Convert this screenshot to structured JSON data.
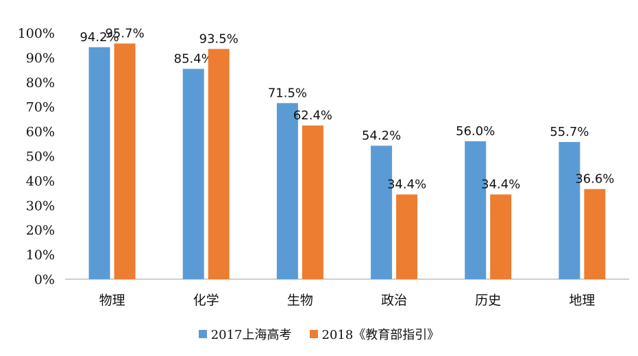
{
  "chart_data": {
    "type": "bar",
    "title": "",
    "xlabel": "",
    "ylabel": "",
    "ylim": [
      0,
      100
    ],
    "yticks": [
      "0%",
      "10%",
      "20%",
      "30%",
      "40%",
      "50%",
      "60%",
      "70%",
      "80%",
      "90%",
      "100%"
    ],
    "categories": [
      "物理",
      "化学",
      "生物",
      "政治",
      "历史",
      "地理"
    ],
    "series": [
      {
        "name": "2017上海高考",
        "color": "#5B9BD5",
        "values": [
          94.2,
          85.4,
          71.5,
          54.2,
          56.0,
          55.7
        ],
        "labels": [
          "94.2%",
          "85.4%",
          "71.5%",
          "54.2%",
          "56.0%",
          "55.7%"
        ]
      },
      {
        "name": "2018《教育部指引》",
        "color": "#ED7D31",
        "values": [
          95.7,
          93.5,
          62.4,
          34.4,
          34.4,
          36.6
        ],
        "labels": [
          "95.7%",
          "93.5%",
          "62.4%",
          "34.4%",
          "34.4%",
          "36.6%"
        ]
      }
    ],
    "legend_position": "bottom",
    "grid": false
  }
}
